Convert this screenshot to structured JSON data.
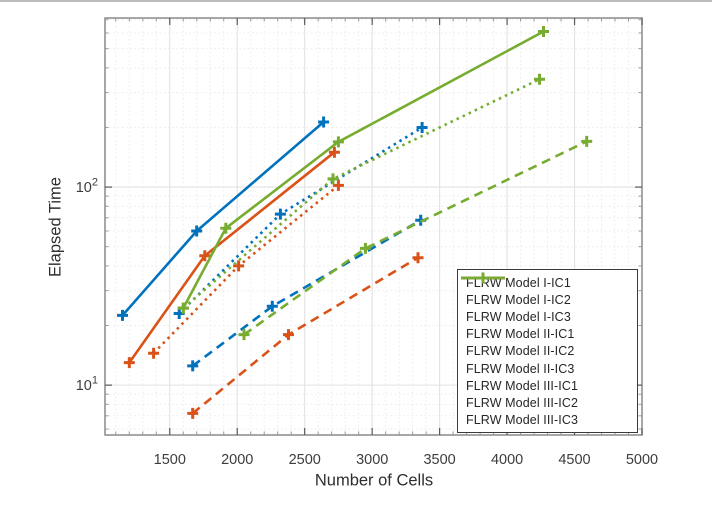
{
  "chart_data": {
    "type": "line",
    "title": "",
    "xlabel": "Number of Cells",
    "ylabel": "Elapsed Time",
    "x_scale": "linear",
    "y_scale": "log",
    "xlim": [
      1020,
      5000
    ],
    "ylim": [
      5.6,
      714
    ],
    "x_major_ticks": [
      1500,
      2000,
      2500,
      3000,
      3500,
      4000,
      4500,
      5000
    ],
    "x_minor_step": 100,
    "y_major_ticks": [
      {
        "value": 10,
        "base": "10",
        "exponent": "1"
      },
      {
        "value": 100,
        "base": "10",
        "exponent": "2"
      }
    ],
    "y_minor_ticks": [
      6,
      7,
      8,
      9,
      20,
      30,
      40,
      50,
      60,
      70,
      80,
      90,
      200,
      300,
      400,
      500,
      600,
      700
    ],
    "grid": true,
    "minor_grid": true,
    "legend_position": "southeast",
    "colors": {
      "model_I": "#0072BD",
      "model_II": "#D95319",
      "model_III": "#77AC30"
    },
    "series": [
      {
        "name": "FLRW Model I-IC1",
        "color": "#0072BD",
        "style": "solid",
        "marker": "+",
        "x": [
          1150,
          1700,
          2640
        ],
        "y": [
          22.5,
          60,
          213
        ]
      },
      {
        "name": "FLRW Model I-IC2",
        "color": "#0072BD",
        "style": "dashed",
        "marker": "+",
        "x": [
          1670,
          2260,
          3360
        ],
        "y": [
          12.5,
          25,
          68
        ]
      },
      {
        "name": "FLRW Model I-IC3",
        "color": "#0072BD",
        "style": "dotted",
        "marker": "+",
        "x": [
          1570,
          2320,
          3370
        ],
        "y": [
          23,
          73,
          200
        ]
      },
      {
        "name": "FLRW Model II-IC1",
        "color": "#D95319",
        "style": "solid",
        "marker": "+",
        "x": [
          1200,
          1760,
          2720
        ],
        "y": [
          13,
          45,
          150
        ]
      },
      {
        "name": "FLRW Model II-IC2",
        "color": "#D95319",
        "style": "dashed",
        "marker": "+",
        "x": [
          1670,
          2380,
          3340
        ],
        "y": [
          7.2,
          18,
          44
        ]
      },
      {
        "name": "FLRW Model II-IC3",
        "color": "#D95319",
        "style": "dotted",
        "marker": "+",
        "x": [
          1380,
          2010,
          2750
        ],
        "y": [
          14.5,
          40,
          102
        ]
      },
      {
        "name": "FLRW Model III-IC1",
        "color": "#77AC30",
        "style": "solid",
        "marker": "+",
        "x": [
          1600,
          1915,
          2750,
          4270
        ],
        "y": [
          24.5,
          62,
          169,
          610
        ]
      },
      {
        "name": "FLRW Model III-IC2",
        "color": "#77AC30",
        "style": "dashed",
        "marker": "+",
        "x": [
          2050,
          2950,
          4590
        ],
        "y": [
          18,
          49,
          170
        ]
      },
      {
        "name": "FLRW Model III-IC3",
        "color": "#77AC30",
        "style": "dotted",
        "marker": "+",
        "x": [
          1600,
          2710,
          4240
        ],
        "y": [
          24.5,
          110,
          350
        ]
      }
    ]
  }
}
